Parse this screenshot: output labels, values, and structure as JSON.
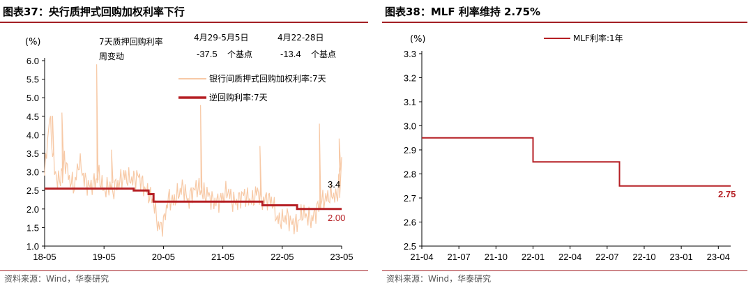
{
  "chart_data": [
    {
      "type": "line",
      "figure_label": "图表37：",
      "title": "央行质押式回购加权利率下行",
      "ylabel": "(%)",
      "ylim": [
        1.0,
        6.0
      ],
      "yticks": [
        "1.0",
        "1.5",
        "2.0",
        "2.5",
        "3.0",
        "3.5",
        "4.0",
        "4.5",
        "5.0",
        "5.5",
        "6.0"
      ],
      "xticks": [
        "18-05",
        "19-05",
        "20-05",
        "21-05",
        "22-05",
        "23-05"
      ],
      "x_range": [
        "2018-05",
        "2023-05"
      ],
      "legend_position": "top-right",
      "info_box": {
        "label_line1": "7天质押回购利率",
        "label_line2": "周变动",
        "period1": "4月29-5月5日",
        "period2": "4月22-28日",
        "value1": "-37.5",
        "value2": "-13.4",
        "unit": "个基点"
      },
      "end_labels": {
        "interbank": "3.4",
        "reverse_repo": "2.00"
      },
      "series": [
        {
          "name": "银行间质押式回购加权利率:7天",
          "color": "#f7c9a6",
          "x": [
            "2018-05",
            "2018-06",
            "2018-07",
            "2018-08",
            "2018-09",
            "2018-10",
            "2018-11",
            "2018-12",
            "2019-01",
            "2019-02",
            "2019-03",
            "2019-04",
            "2019-05",
            "2019-06",
            "2019-07",
            "2019-08",
            "2019-09",
            "2019-10",
            "2019-11",
            "2019-12",
            "2020-01",
            "2020-02",
            "2020-03",
            "2020-04",
            "2020-05",
            "2020-06",
            "2020-07",
            "2020-08",
            "2020-09",
            "2020-10",
            "2020-11",
            "2020-12",
            "2021-01",
            "2021-02",
            "2021-03",
            "2021-04",
            "2021-05",
            "2021-06",
            "2021-07",
            "2021-08",
            "2021-09",
            "2021-10",
            "2021-11",
            "2021-12",
            "2022-01",
            "2022-02",
            "2022-03",
            "2022-04",
            "2022-05",
            "2022-06",
            "2022-07",
            "2022-08",
            "2022-09",
            "2022-10",
            "2022-11",
            "2022-12",
            "2023-01",
            "2023-02",
            "2023-03",
            "2023-04",
            "2023-05"
          ],
          "values": [
            2.9,
            4.5,
            3.0,
            2.7,
            3.4,
            2.8,
            2.6,
            3.3,
            2.8,
            2.6,
            2.7,
            2.9,
            2.5,
            2.6,
            2.6,
            2.7,
            2.9,
            2.8,
            2.8,
            2.9,
            2.6,
            2.4,
            2.2,
            1.5,
            1.6,
            2.3,
            2.2,
            2.4,
            2.6,
            2.2,
            2.5,
            2.6,
            2.4,
            2.4,
            2.2,
            2.2,
            2.3,
            2.5,
            2.2,
            2.2,
            2.4,
            2.3,
            2.2,
            2.5,
            2.2,
            2.3,
            2.2,
            1.7,
            1.7,
            1.8,
            1.6,
            1.6,
            1.9,
            1.8,
            1.7,
            2.0,
            2.2,
            2.3,
            2.4,
            2.3,
            3.4
          ],
          "spikes": [
            {
              "x": "2018-06",
              "value": 4.5
            },
            {
              "x": "2018-08",
              "value": 4.6
            },
            {
              "x": "2019-03",
              "value": 5.9
            },
            {
              "x": "2019-06",
              "value": 3.6
            },
            {
              "x": "2020-12",
              "value": 4.8
            },
            {
              "x": "2021-12",
              "value": 3.7
            },
            {
              "x": "2022-12",
              "value": 4.3
            },
            {
              "x": "2023-04",
              "value": 3.9
            }
          ]
        },
        {
          "name": "逆回购利率:7天",
          "color": "#b51f24",
          "steps": [
            {
              "from": "2018-05",
              "to": "2019-11",
              "value": 2.55
            },
            {
              "from": "2019-11",
              "to": "2020-02",
              "value": 2.5
            },
            {
              "from": "2020-02",
              "to": "2020-03",
              "value": 2.4
            },
            {
              "from": "2020-03",
              "to": "2022-01",
              "value": 2.2
            },
            {
              "from": "2022-01",
              "to": "2022-08",
              "value": 2.1
            },
            {
              "from": "2022-08",
              "to": "2023-05",
              "value": 2.0
            }
          ]
        }
      ]
    },
    {
      "type": "line",
      "figure_label": "图表38：",
      "title": "MLF 利率维持 2.75%",
      "ylabel": "(%)",
      "ylim": [
        2.5,
        3.3
      ],
      "yticks": [
        "2.5",
        "2.6",
        "2.7",
        "2.8",
        "2.9",
        "3.0",
        "3.1",
        "3.2",
        "3.3"
      ],
      "xticks": [
        "21-04",
        "21-07",
        "21-10",
        "22-01",
        "22-04",
        "22-07",
        "22-10",
        "23-01",
        "23-04"
      ],
      "x_range": [
        "2021-04",
        "2023-05"
      ],
      "legend_position": "top-center",
      "end_label": "2.75",
      "series": [
        {
          "name": "MLF利率:1年",
          "color": "#b51f24",
          "steps": [
            {
              "from": "2021-04",
              "to": "2022-01",
              "value": 2.95
            },
            {
              "from": "2022-01",
              "to": "2022-08",
              "value": 2.85
            },
            {
              "from": "2022-08",
              "to": "2023-05",
              "value": 2.75
            }
          ]
        }
      ]
    }
  ],
  "sources": {
    "left": "资料来源：Wind，华泰研究",
    "right": "资料来源：Wind，华泰研究"
  },
  "colors": {
    "accent": "#a31f24",
    "pale_line": "#f7c9a6",
    "red_line": "#b51f24"
  }
}
